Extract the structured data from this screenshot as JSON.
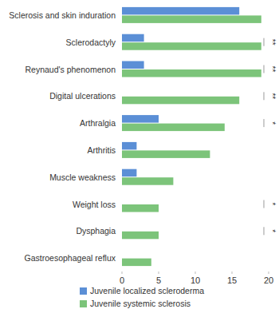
{
  "chart_data": {
    "type": "bar",
    "orientation": "horizontal",
    "categories": [
      "Sclerosis and skin induration",
      "Sclerodactyly",
      "Reynaud's phenomenon",
      "Digital ulcerations",
      "Arthralgia",
      "Arthritis",
      "Muscle weakness",
      "Weight loss",
      "Dysphagia",
      "Gastroesophageal reflux"
    ],
    "series": [
      {
        "name": "Juvenile localized scleroderma",
        "color": "#5b8fd6",
        "values": [
          16,
          3,
          3,
          0,
          5,
          2,
          2,
          0,
          0,
          0
        ]
      },
      {
        "name": "Juvenile systemic sclerosis",
        "color": "#7cc47a",
        "values": [
          19,
          19,
          19,
          16,
          14,
          12,
          7,
          5,
          5,
          4
        ]
      }
    ],
    "xlim": [
      0,
      20
    ],
    "xticks": [
      0,
      5,
      10,
      15,
      20
    ],
    "grid": false,
    "legend": "bottom",
    "annotations": [
      {
        "category": "Sclerodactyly",
        "text": "**"
      },
      {
        "category": "Reynaud's phenomenon",
        "text": "**"
      },
      {
        "category": "Digital ulcerations",
        "text": "**"
      },
      {
        "category": "Arthralgia",
        "text": "*"
      },
      {
        "category": "Weight loss",
        "text": "*"
      },
      {
        "category": "Dysphagia",
        "text": "*"
      }
    ]
  }
}
